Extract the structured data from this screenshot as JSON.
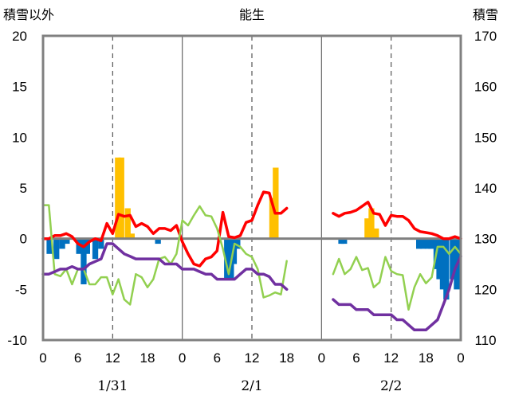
{
  "chart_data": {
    "type": "bar+line",
    "title": "能生",
    "left_axis_label": "積雪以外",
    "right_axis_label": "積雪",
    "left_axis": {
      "min": -10,
      "max": 20,
      "ticks": [
        -10,
        -5,
        0,
        5,
        10,
        15,
        20
      ]
    },
    "right_axis": {
      "min": 110,
      "max": 170,
      "ticks": [
        110,
        120,
        130,
        140,
        150,
        160,
        170
      ]
    },
    "hours_range": [
      0,
      72
    ],
    "x_tick_labels": [
      {
        "h": 0,
        "label": "0"
      },
      {
        "h": 6,
        "label": "6"
      },
      {
        "h": 12,
        "label": "12"
      },
      {
        "h": 18,
        "label": "18"
      },
      {
        "h": 24,
        "label": "0"
      },
      {
        "h": 30,
        "label": "6"
      },
      {
        "h": 36,
        "label": "12"
      },
      {
        "h": 42,
        "label": "18"
      },
      {
        "h": 48,
        "label": "0"
      },
      {
        "h": 54,
        "label": "6"
      },
      {
        "h": 60,
        "label": "12"
      },
      {
        "h": 66,
        "label": "18"
      },
      {
        "h": 72,
        "label": "0"
      }
    ],
    "day_labels": [
      {
        "h": 12,
        "label": "1/31"
      },
      {
        "h": 36,
        "label": "2/1"
      },
      {
        "h": 60,
        "label": "2/2"
      }
    ],
    "grid": {
      "dashed_hours": [
        12,
        36,
        60
      ],
      "solid_hours": [
        24,
        48
      ]
    },
    "series": [
      {
        "kind": "bar",
        "color": "#ffc000",
        "values": [
          [
            12.9,
            8
          ],
          [
            13.5,
            8
          ],
          [
            14.6,
            3
          ],
          [
            15.3,
            0.5
          ],
          [
            39.5,
            4
          ],
          [
            40.1,
            7
          ],
          [
            55.9,
            2
          ],
          [
            56.6,
            3
          ],
          [
            57.4,
            1
          ]
        ]
      },
      {
        "kind": "bar",
        "color": "#0070c0",
        "values": [
          [
            1.1,
            -1.5
          ],
          [
            2.3,
            -2
          ],
          [
            3.3,
            -1
          ],
          [
            4.1,
            -0.5
          ],
          [
            6.2,
            -1.5
          ],
          [
            7.0,
            -4.5
          ],
          [
            7.6,
            -1.5
          ],
          [
            9.0,
            -2
          ],
          [
            10.0,
            -1
          ],
          [
            19.8,
            -0.5
          ],
          [
            31.7,
            -4
          ],
          [
            32.4,
            -4
          ],
          [
            32.9,
            -2.5
          ],
          [
            33.5,
            -1
          ],
          [
            51.4,
            -0.5
          ],
          [
            51.9,
            -0.5
          ],
          [
            64.8,
            -1
          ],
          [
            65.5,
            -1
          ],
          [
            66.3,
            -1
          ],
          [
            66.9,
            -1
          ],
          [
            67.8,
            -3
          ],
          [
            68.3,
            -4
          ],
          [
            68.9,
            -5
          ],
          [
            69.5,
            -6
          ],
          [
            70.6,
            -4
          ],
          [
            71.3,
            -5
          ]
        ]
      },
      {
        "kind": "line",
        "axis": "left",
        "color": "#ff0000",
        "segments": [
          [
            [
              0,
              0
            ],
            [
              1,
              0
            ],
            [
              2,
              0.3
            ],
            [
              3,
              0.3
            ],
            [
              4,
              0.5
            ],
            [
              5,
              0.2
            ],
            [
              6,
              -0.5
            ],
            [
              7,
              -0.8
            ],
            [
              8,
              -0.3
            ],
            [
              9,
              0
            ],
            [
              10,
              -0.2
            ],
            [
              11,
              1.5
            ],
            [
              12,
              0.5
            ],
            [
              13,
              2.4
            ],
            [
              14,
              2.2
            ],
            [
              15,
              2.3
            ],
            [
              16,
              1.2
            ],
            [
              17,
              1.5
            ],
            [
              18,
              1.2
            ],
            [
              19,
              0.5
            ],
            [
              20,
              1
            ],
            [
              21,
              1
            ],
            [
              22,
              0.8
            ],
            [
              23,
              1.3
            ],
            [
              24,
              -0.3
            ],
            [
              25,
              -1.5
            ],
            [
              26,
              -2.5
            ],
            [
              27,
              -2.7
            ],
            [
              28,
              -2
            ],
            [
              29,
              -1.8
            ],
            [
              30,
              -1.2
            ],
            [
              31,
              2.6
            ],
            [
              32,
              0.2
            ],
            [
              33,
              0.1
            ],
            [
              34,
              0.3
            ],
            [
              35,
              1.6
            ],
            [
              36,
              1.8
            ],
            [
              37,
              3.3
            ],
            [
              38,
              4.6
            ],
            [
              39,
              4.5
            ],
            [
              40,
              2.5
            ],
            [
              41,
              2.5
            ],
            [
              42,
              3
            ]
          ],
          [
            [
              50,
              2.5
            ],
            [
              51,
              2.2
            ],
            [
              52,
              2.5
            ],
            [
              53,
              2.6
            ],
            [
              54,
              2.8
            ],
            [
              55,
              3.2
            ],
            [
              56,
              3.6
            ],
            [
              57,
              2.5
            ],
            [
              58,
              2.4
            ],
            [
              59,
              1.3
            ],
            [
              60,
              2.3
            ],
            [
              61,
              2.2
            ],
            [
              62,
              2.2
            ],
            [
              63,
              1.8
            ],
            [
              64,
              1
            ],
            [
              65,
              0.7
            ],
            [
              66,
              0.6
            ],
            [
              67,
              0.5
            ],
            [
              68,
              0.3
            ],
            [
              69,
              0
            ],
            [
              70,
              0
            ],
            [
              71,
              0.2
            ],
            [
              72,
              0
            ]
          ]
        ]
      },
      {
        "kind": "line",
        "axis": "left",
        "color": "#92d050",
        "segments": [
          [
            [
              0,
              3.3
            ],
            [
              1,
              3.3
            ],
            [
              2,
              -3.5
            ],
            [
              3,
              -3.7
            ],
            [
              4,
              -3
            ],
            [
              5,
              -4.5
            ],
            [
              6,
              -3
            ],
            [
              7,
              -3
            ],
            [
              8,
              -4.5
            ],
            [
              9,
              -4.5
            ],
            [
              10,
              -3.8
            ],
            [
              11,
              -3.8
            ],
            [
              12,
              -5.5
            ],
            [
              13,
              -4
            ],
            [
              14,
              -6
            ],
            [
              15,
              -6.5
            ],
            [
              16,
              -3.5
            ],
            [
              17,
              -3.8
            ],
            [
              18,
              -4.8
            ],
            [
              19,
              -4
            ],
            [
              20,
              -2
            ],
            [
              21,
              -1.8
            ],
            [
              22,
              -2.5
            ],
            [
              23,
              -1.5
            ],
            [
              24,
              1.8
            ],
            [
              25,
              1.3
            ],
            [
              26,
              2.3
            ],
            [
              27,
              3.2
            ],
            [
              28,
              2.3
            ],
            [
              29,
              2.2
            ],
            [
              30,
              1
            ],
            [
              31,
              -1
            ],
            [
              32,
              -3.5
            ],
            [
              33,
              -0.5
            ],
            [
              34,
              -0.8
            ],
            [
              35,
              -1.5
            ],
            [
              36,
              -1.8
            ],
            [
              37,
              -3
            ],
            [
              38,
              -5.8
            ],
            [
              39,
              -5.6
            ],
            [
              40,
              -5.3
            ],
            [
              41,
              -5.5
            ],
            [
              42,
              -2.2
            ]
          ],
          [
            [
              50,
              -3.5
            ],
            [
              51,
              -2
            ],
            [
              52,
              -3.5
            ],
            [
              53,
              -3
            ],
            [
              54,
              -1.8
            ],
            [
              55,
              -3.1
            ],
            [
              56,
              -2.9
            ],
            [
              57,
              -4.8
            ],
            [
              58,
              -4.3
            ],
            [
              59,
              -1.8
            ],
            [
              60,
              -3.2
            ],
            [
              61,
              -3.5
            ],
            [
              62,
              -3.6
            ],
            [
              63,
              -7
            ],
            [
              64,
              -4.8
            ],
            [
              65,
              -3.5
            ],
            [
              66,
              -4.4
            ],
            [
              67,
              -3.8
            ],
            [
              68,
              -0.8
            ],
            [
              69,
              -0.8
            ],
            [
              70,
              -1.5
            ],
            [
              71,
              -0.8
            ],
            [
              72,
              -1.5
            ]
          ]
        ]
      },
      {
        "kind": "line",
        "axis": "right",
        "color": "#7030a0",
        "segments": [
          [
            [
              0,
              123
            ],
            [
              1,
              123
            ],
            [
              2,
              123.5
            ],
            [
              3,
              124
            ],
            [
              4,
              124
            ],
            [
              5,
              124.5
            ],
            [
              6,
              124
            ],
            [
              7,
              124
            ],
            [
              8,
              125
            ],
            [
              9,
              125.5
            ],
            [
              10,
              126
            ],
            [
              11,
              129
            ],
            [
              12,
              129
            ],
            [
              13,
              128
            ],
            [
              14,
              127
            ],
            [
              15,
              126.5
            ],
            [
              16,
              126
            ],
            [
              17,
              126
            ],
            [
              18,
              126
            ],
            [
              19,
              126
            ],
            [
              20,
              126
            ],
            [
              21,
              125
            ],
            [
              22,
              125
            ],
            [
              23,
              125
            ],
            [
              24,
              124
            ],
            [
              25,
              124
            ],
            [
              26,
              124
            ],
            [
              27,
              123.5
            ],
            [
              28,
              123
            ],
            [
              29,
              123
            ],
            [
              30,
              122
            ],
            [
              31,
              122
            ],
            [
              32,
              122
            ],
            [
              33,
              122
            ],
            [
              34,
              123
            ],
            [
              35,
              124
            ],
            [
              36,
              124
            ],
            [
              37,
              123
            ],
            [
              38,
              123
            ],
            [
              39,
              122.5
            ],
            [
              40,
              121
            ],
            [
              41,
              121
            ],
            [
              42,
              120
            ]
          ],
          [
            [
              50,
              118
            ],
            [
              51,
              117
            ],
            [
              52,
              117
            ],
            [
              53,
              117
            ],
            [
              54,
              116
            ],
            [
              55,
              116
            ],
            [
              56,
              116
            ],
            [
              57,
              115
            ],
            [
              58,
              115
            ],
            [
              59,
              115
            ],
            [
              60,
              115
            ],
            [
              61,
              114
            ],
            [
              62,
              114
            ],
            [
              63,
              113
            ],
            [
              64,
              112
            ],
            [
              65,
              112
            ],
            [
              66,
              112
            ],
            [
              67,
              113
            ],
            [
              68,
              114
            ],
            [
              69,
              117
            ],
            [
              70,
              120
            ],
            [
              71,
              124
            ],
            [
              72,
              126.5
            ]
          ]
        ]
      }
    ]
  }
}
